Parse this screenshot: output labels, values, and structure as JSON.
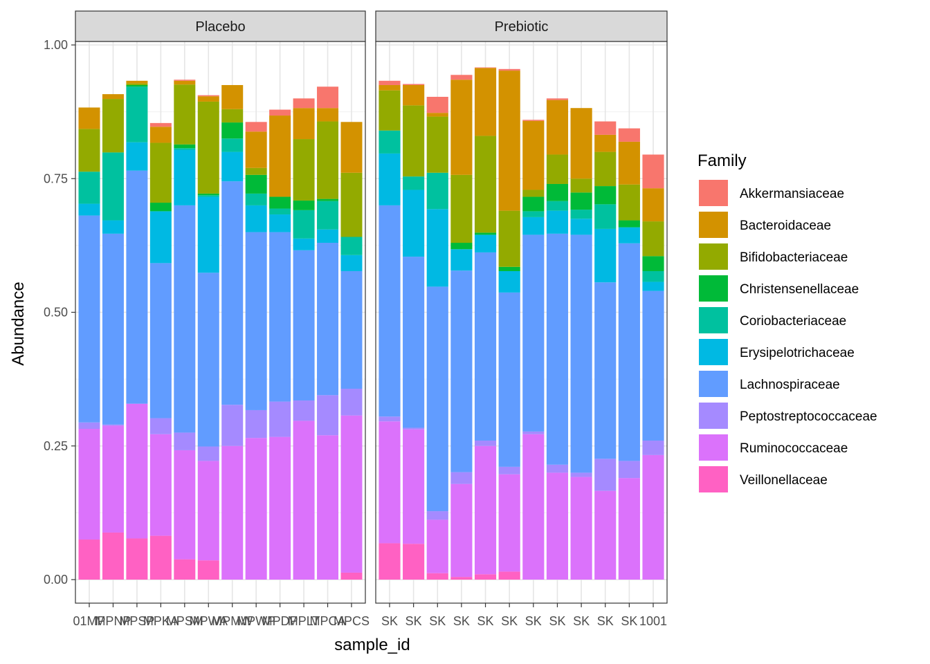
{
  "chart_data": {
    "type": "bar",
    "stacked": true,
    "xlabel": "sample_id",
    "ylabel": "Abundance",
    "ylim": [
      0,
      1.05
    ],
    "y_ticks": [
      "0.00",
      "0.25",
      "0.50",
      "0.75",
      "1.00"
    ],
    "y_tick_values": [
      0,
      0.25,
      0.5,
      0.75,
      1.0
    ],
    "grid": true,
    "legend_position": "right",
    "legend_title": "Family",
    "families": [
      "Akkermansiaceae",
      "Bacteroidaceae",
      "Bifidobacteriaceae",
      "Christensenellaceae",
      "Coriobacteriaceae",
      "Erysipelotrichaceae",
      "Lachnospiraceae",
      "Peptostreptococcaceae",
      "Ruminococcaceae",
      "Veillonellaceae"
    ],
    "colors": {
      "Akkermansiaceae": "#F8766D",
      "Bacteroidaceae": "#D39200",
      "Bifidobacteriaceae": "#93AA00",
      "Christensenellaceae": "#00BA38",
      "Coriobacteriaceae": "#00C19F",
      "Erysipelotrichaceae": "#00B9E3",
      "Lachnospiraceae": "#619CFF",
      "Peptostreptococcaceae": "#A58AFF",
      "Ruminococcaceae": "#DB72FB",
      "Veillonellaceae": "#FF61C3"
    },
    "panels": [
      {
        "name": "Placebo",
        "x_tick_labels": [
          "01MP",
          "MPNP",
          "MPSP",
          "MPKA",
          "MPSM",
          "MPWA",
          "MPMW",
          "MPWP",
          "MPDP",
          "MPLT",
          "MPCA",
          "MPCS"
        ],
        "bars": [
          {
            "Veillonellaceae": 0.075,
            "Ruminococcaceae": 0.207,
            "Peptostreptococcaceae": 0.012,
            "Lachnospiraceae": 0.387,
            "Erysipelotrichaceae": 0.022,
            "Coriobacteriaceae": 0.06,
            "Christensenellaceae": 0.0,
            "Bifidobacteriaceae": 0.08,
            "Bacteroidaceae": 0.04,
            "Akkermansiaceae": 0.0
          },
          {
            "Veillonellaceae": 0.088,
            "Ruminococcaceae": 0.2,
            "Peptostreptococcaceae": 0.002,
            "Lachnospiraceae": 0.357,
            "Erysipelotrichaceae": 0.025,
            "Coriobacteriaceae": 0.127,
            "Christensenellaceae": 0.0,
            "Bifidobacteriaceae": 0.1,
            "Bacteroidaceae": 0.009,
            "Akkermansiaceae": 0.0
          },
          {
            "Veillonellaceae": 0.077,
            "Ruminococcaceae": 0.252,
            "Peptostreptococcaceae": 0.0,
            "Lachnospiraceae": 0.436,
            "Erysipelotrichaceae": 0.053,
            "Coriobacteriaceae": 0.104,
            "Christensenellaceae": 0.003,
            "Bifidobacteriaceae": 0.003,
            "Bacteroidaceae": 0.005,
            "Akkermansiaceae": 0.0
          },
          {
            "Veillonellaceae": 0.082,
            "Ruminococcaceae": 0.19,
            "Peptostreptococcaceae": 0.03,
            "Lachnospiraceae": 0.29,
            "Erysipelotrichaceae": 0.097,
            "Coriobacteriaceae": 0.0,
            "Christensenellaceae": 0.016,
            "Bifidobacteriaceae": 0.112,
            "Bacteroidaceae": 0.03,
            "Akkermansiaceae": 0.007
          },
          {
            "Veillonellaceae": 0.038,
            "Ruminococcaceae": 0.204,
            "Peptostreptococcaceae": 0.033,
            "Lachnospiraceae": 0.425,
            "Erysipelotrichaceae": 0.104,
            "Coriobacteriaceae": 0.003,
            "Christensenellaceae": 0.007,
            "Bifidobacteriaceae": 0.112,
            "Bacteroidaceae": 0.007,
            "Akkermansiaceae": 0.002
          },
          {
            "Veillonellaceae": 0.036,
            "Ruminococcaceae": 0.186,
            "Peptostreptococcaceae": 0.027,
            "Lachnospiraceae": 0.325,
            "Erysipelotrichaceae": 0.142,
            "Coriobacteriaceae": 0.003,
            "Christensenellaceae": 0.003,
            "Bifidobacteriaceae": 0.172,
            "Bacteroidaceae": 0.01,
            "Akkermansiaceae": 0.002
          },
          {
            "Veillonellaceae": 0.0,
            "Ruminococcaceae": 0.25,
            "Peptostreptococcaceae": 0.077,
            "Lachnospiraceae": 0.418,
            "Erysipelotrichaceae": 0.055,
            "Coriobacteriaceae": 0.025,
            "Christensenellaceae": 0.03,
            "Bifidobacteriaceae": 0.025,
            "Bacteroidaceae": 0.045,
            "Akkermansiaceae": 0.0
          },
          {
            "Veillonellaceae": 0.0,
            "Ruminococcaceae": 0.265,
            "Peptostreptococcaceae": 0.052,
            "Lachnospiraceae": 0.333,
            "Erysipelotrichaceae": 0.05,
            "Coriobacteriaceae": 0.022,
            "Christensenellaceae": 0.035,
            "Bifidobacteriaceae": 0.013,
            "Bacteroidaceae": 0.068,
            "Akkermansiaceae": 0.018
          },
          {
            "Veillonellaceae": 0.0,
            "Ruminococcaceae": 0.267,
            "Peptostreptococcaceae": 0.066,
            "Lachnospiraceae": 0.317,
            "Erysipelotrichaceae": 0.033,
            "Coriobacteriaceae": 0.011,
            "Christensenellaceae": 0.022,
            "Bifidobacteriaceae": 0.0,
            "Bacteroidaceae": 0.152,
            "Akkermansiaceae": 0.011
          },
          {
            "Veillonellaceae": 0.0,
            "Ruminococcaceae": 0.297,
            "Peptostreptococcaceae": 0.038,
            "Lachnospiraceae": 0.281,
            "Erysipelotrichaceae": 0.022,
            "Coriobacteriaceae": 0.053,
            "Christensenellaceae": 0.018,
            "Bifidobacteriaceae": 0.115,
            "Bacteroidaceae": 0.058,
            "Akkermansiaceae": 0.018
          },
          {
            "Veillonellaceae": 0.0,
            "Ruminococcaceae": 0.27,
            "Peptostreptococcaceae": 0.075,
            "Lachnospiraceae": 0.285,
            "Erysipelotrichaceae": 0.025,
            "Coriobacteriaceae": 0.053,
            "Christensenellaceae": 0.004,
            "Bifidobacteriaceae": 0.145,
            "Bacteroidaceae": 0.025,
            "Akkermansiaceae": 0.04
          },
          {
            "Veillonellaceae": 0.013,
            "Ruminococcaceae": 0.294,
            "Peptostreptococcaceae": 0.05,
            "Lachnospiraceae": 0.22,
            "Erysipelotrichaceae": 0.03,
            "Coriobacteriaceae": 0.034,
            "Christensenellaceae": 0.0,
            "Bifidobacteriaceae": 0.12,
            "Bacteroidaceae": 0.095,
            "Akkermansiaceae": 0.0
          }
        ]
      },
      {
        "name": "Prebiotic",
        "x_tick_labels": [
          "SK",
          "SK",
          "SK",
          "SK",
          "SK",
          "SK",
          "SK",
          "SK",
          "SK",
          "SK",
          "SK",
          "1001"
        ],
        "bars": [
          {
            "Veillonellaceae": 0.068,
            "Ruminococcaceae": 0.228,
            "Peptostreptococcaceae": 0.009,
            "Lachnospiraceae": 0.395,
            "Erysipelotrichaceae": 0.097,
            "Coriobacteriaceae": 0.043,
            "Christensenellaceae": 0.0,
            "Bifidobacteriaceae": 0.075,
            "Bacteroidaceae": 0.01,
            "Akkermansiaceae": 0.008
          },
          {
            "Veillonellaceae": 0.067,
            "Ruminococcaceae": 0.214,
            "Peptostreptococcaceae": 0.003,
            "Lachnospiraceae": 0.32,
            "Erysipelotrichaceae": 0.125,
            "Coriobacteriaceae": 0.025,
            "Christensenellaceae": 0.0,
            "Bifidobacteriaceae": 0.133,
            "Bacteroidaceae": 0.038,
            "Akkermansiaceae": 0.002
          },
          {
            "Veillonellaceae": 0.012,
            "Ruminococcaceae": 0.1,
            "Peptostreptococcaceae": 0.016,
            "Lachnospiraceae": 0.42,
            "Erysipelotrichaceae": 0.145,
            "Coriobacteriaceae": 0.068,
            "Christensenellaceae": 0.0,
            "Bifidobacteriaceae": 0.105,
            "Bacteroidaceae": 0.007,
            "Akkermansiaceae": 0.03
          },
          {
            "Veillonellaceae": 0.005,
            "Ruminococcaceae": 0.174,
            "Peptostreptococcaceae": 0.022,
            "Lachnospiraceae": 0.377,
            "Erysipelotrichaceae": 0.04,
            "Coriobacteriaceae": 0.0,
            "Christensenellaceae": 0.012,
            "Bifidobacteriaceae": 0.127,
            "Bacteroidaceae": 0.178,
            "Akkermansiaceae": 0.009
          },
          {
            "Veillonellaceae": 0.01,
            "Ruminococcaceae": 0.24,
            "Peptostreptococcaceae": 0.01,
            "Lachnospiraceae": 0.352,
            "Erysipelotrichaceae": 0.033,
            "Coriobacteriaceae": 0.0,
            "Christensenellaceae": 0.004,
            "Bifidobacteriaceae": 0.181,
            "Bacteroidaceae": 0.127,
            "Akkermansiaceae": 0.001
          },
          {
            "Veillonellaceae": 0.015,
            "Ruminococcaceae": 0.182,
            "Peptostreptococcaceae": 0.014,
            "Lachnospiraceae": 0.326,
            "Erysipelotrichaceae": 0.04,
            "Coriobacteriaceae": 0.0,
            "Christensenellaceae": 0.008,
            "Bifidobacteriaceae": 0.105,
            "Bacteroidaceae": 0.262,
            "Akkermansiaceae": 0.003
          },
          {
            "Veillonellaceae": 0.0,
            "Ruminococcaceae": 0.272,
            "Peptostreptococcaceae": 0.005,
            "Lachnospiraceae": 0.368,
            "Erysipelotrichaceae": 0.033,
            "Coriobacteriaceae": 0.011,
            "Christensenellaceae": 0.027,
            "Bifidobacteriaceae": 0.013,
            "Bacteroidaceae": 0.129,
            "Akkermansiaceae": 0.002
          },
          {
            "Veillonellaceae": 0.0,
            "Ruminococcaceae": 0.2,
            "Peptostreptococcaceae": 0.015,
            "Lachnospiraceae": 0.432,
            "Erysipelotrichaceae": 0.043,
            "Coriobacteriaceae": 0.018,
            "Christensenellaceae": 0.032,
            "Bifidobacteriaceae": 0.055,
            "Bacteroidaceae": 0.102,
            "Akkermansiaceae": 0.003
          },
          {
            "Veillonellaceae": 0.0,
            "Ruminococcaceae": 0.192,
            "Peptostreptococcaceae": 0.008,
            "Lachnospiraceae": 0.445,
            "Erysipelotrichaceae": 0.03,
            "Coriobacteriaceae": 0.017,
            "Christensenellaceae": 0.032,
            "Bifidobacteriaceae": 0.026,
            "Bacteroidaceae": 0.132,
            "Akkermansiaceae": 0.0
          },
          {
            "Veillonellaceae": 0.0,
            "Ruminococcaceae": 0.166,
            "Peptostreptococcaceae": 0.06,
            "Lachnospiraceae": 0.33,
            "Erysipelotrichaceae": 0.1,
            "Coriobacteriaceae": 0.046,
            "Christensenellaceae": 0.034,
            "Bifidobacteriaceae": 0.064,
            "Bacteroidaceae": 0.032,
            "Akkermansiaceae": 0.025
          },
          {
            "Veillonellaceae": 0.0,
            "Ruminococcaceae": 0.19,
            "Peptostreptococcaceae": 0.032,
            "Lachnospiraceae": 0.407,
            "Erysipelotrichaceae": 0.03,
            "Coriobacteriaceae": 0.0,
            "Christensenellaceae": 0.013,
            "Bifidobacteriaceae": 0.067,
            "Bacteroidaceae": 0.08,
            "Akkermansiaceae": 0.025
          },
          {
            "Veillonellaceae": 0.0,
            "Ruminococcaceae": 0.233,
            "Peptostreptococcaceae": 0.027,
            "Lachnospiraceae": 0.28,
            "Erysipelotrichaceae": 0.017,
            "Coriobacteriaceae": 0.02,
            "Christensenellaceae": 0.028,
            "Bifidobacteriaceae": 0.065,
            "Bacteroidaceae": 0.062,
            "Akkermansiaceae": 0.063
          }
        ]
      }
    ]
  }
}
